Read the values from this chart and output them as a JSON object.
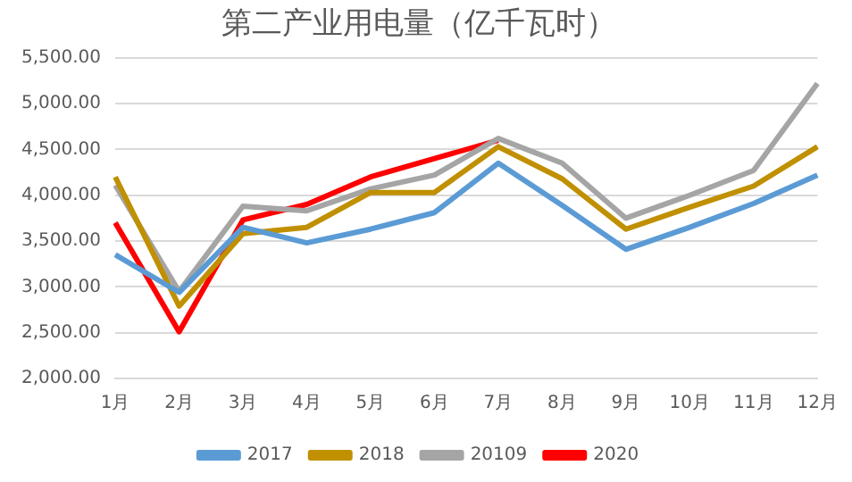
{
  "chart_data": {
    "type": "line",
    "title": "第二产业用电量（亿千瓦时）",
    "categories": [
      "1月",
      "2月",
      "3月",
      "4月",
      "5月",
      "6月",
      "7月",
      "8月",
      "9月",
      "10月",
      "11月",
      "12月"
    ],
    "series": [
      {
        "name": "2017",
        "color": "#5b9bd5",
        "values": [
          3350,
          2940,
          3650,
          3480,
          3630,
          3810,
          4350,
          3890,
          3410,
          3650,
          3910,
          4220
        ]
      },
      {
        "name": "2018",
        "color": "#c09000",
        "values": [
          4200,
          2790,
          3580,
          3650,
          4030,
          4030,
          4530,
          4180,
          3630,
          3870,
          4100,
          4530
        ]
      },
      {
        "name": "20109",
        "color": "#a5a5a5",
        "values": [
          4110,
          2950,
          3880,
          3830,
          4070,
          4220,
          4620,
          4350,
          3750,
          4000,
          4270,
          5220
        ]
      },
      {
        "name": "2020",
        "color": "#ff0000",
        "values": [
          3700,
          2510,
          3730,
          3900,
          4200,
          4400,
          4600,
          null,
          null,
          null,
          null,
          null
        ]
      }
    ],
    "ylim": [
      2000,
      5500
    ],
    "yticks": [
      {
        "value": 2000,
        "label": "2,000.00"
      },
      {
        "value": 2500,
        "label": "2,500.00"
      },
      {
        "value": 3000,
        "label": "3,000.00"
      },
      {
        "value": 3500,
        "label": "3,500.00"
      },
      {
        "value": 4000,
        "label": "4,000.00"
      },
      {
        "value": 4500,
        "label": "4,500.00"
      },
      {
        "value": 5000,
        "label": "5,000.00"
      },
      {
        "value": 5500,
        "label": "5,500.00"
      }
    ],
    "grid": "y",
    "legend": "bottom",
    "marker": "none",
    "line_style": "solid"
  }
}
